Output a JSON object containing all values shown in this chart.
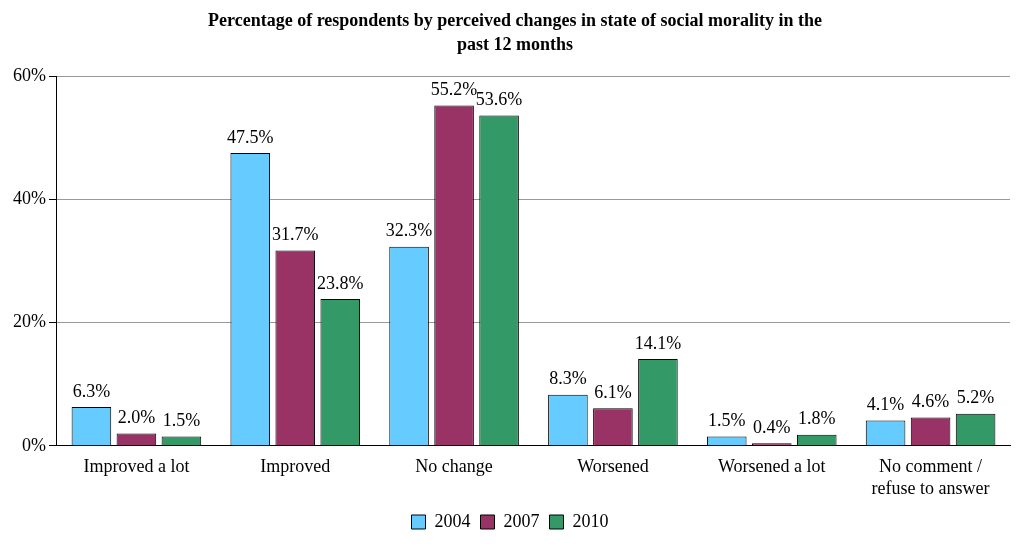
{
  "chart_data": {
    "type": "bar",
    "title": "Percentage of respondents by perceived changes in state of social morality in the past 12 months",
    "categories": [
      "Improved a lot",
      "Improved",
      "No change",
      "Worsened",
      "Worsened a lot",
      "No comment / refuse to answer"
    ],
    "series": [
      {
        "name": "2004",
        "color": "#66ccff",
        "values": [
          6.3,
          47.5,
          32.3,
          8.3,
          1.5,
          4.1
        ]
      },
      {
        "name": "2007",
        "color": "#993366",
        "values": [
          2.0,
          31.7,
          55.2,
          6.1,
          0.4,
          4.6
        ]
      },
      {
        "name": "2010",
        "color": "#339966",
        "values": [
          1.5,
          23.8,
          53.6,
          14.1,
          1.8,
          5.2
        ]
      }
    ],
    "value_labels": [
      [
        "6.3%",
        "47.5%",
        "32.3%",
        "8.3%",
        "1.5%",
        "4.1%"
      ],
      [
        "2.0%",
        "31.7%",
        "55.2%",
        "6.1%",
        "0.4%",
        "4.6%"
      ],
      [
        "1.5%",
        "23.8%",
        "53.6%",
        "14.1%",
        "1.8%",
        "5.2%"
      ]
    ],
    "ylim": [
      0,
      60
    ],
    "yticks": [
      {
        "value": 0,
        "label": "0%"
      },
      {
        "value": 20,
        "label": "20%"
      },
      {
        "value": 40,
        "label": "40%"
      },
      {
        "value": 60,
        "label": "60%"
      }
    ],
    "grid": "y",
    "legend": "bottom"
  }
}
